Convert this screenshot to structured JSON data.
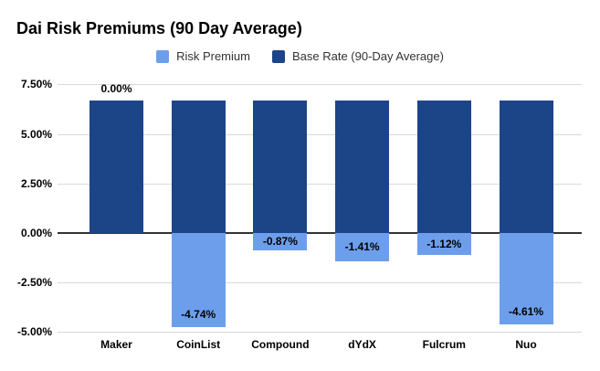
{
  "chart": {
    "title": "Dai Risk Premiums (90 Day Average)"
  },
  "chart_data": {
    "type": "bar",
    "subtype": "stacked-column",
    "title": "Dai Risk Premiums (90 Day Average)",
    "categories": [
      "Maker",
      "CoinList",
      "Compound",
      "dYdX",
      "Fulcrum",
      "Nuo"
    ],
    "series": [
      {
        "name": "Risk Premium",
        "color": "#6d9eeb",
        "values": [
          0,
          -4.74,
          -0.87,
          -1.41,
          -1.12,
          -4.61
        ],
        "labels": [
          "0.00%",
          "-4.74%",
          "-0.87%",
          "-1.41%",
          "-1.12%",
          "-4.61%"
        ]
      },
      {
        "name": "Base Rate (90-Day Average)",
        "color": "#1c4587",
        "values": [
          6.67,
          6.67,
          6.67,
          6.67,
          6.67,
          6.67
        ],
        "labels": [
          "",
          "",
          "",
          "",
          "",
          ""
        ]
      }
    ],
    "y_axis": {
      "ticks": [
        "7.50%",
        "5.00%",
        "2.50%",
        "0.00%",
        "-2.50%",
        "-5.00%"
      ],
      "tick_values": [
        7.5,
        5,
        2.5,
        0,
        -2.5,
        -5
      ],
      "min": -5,
      "max": 7.5
    },
    "grid": true,
    "legend_position": "top"
  }
}
